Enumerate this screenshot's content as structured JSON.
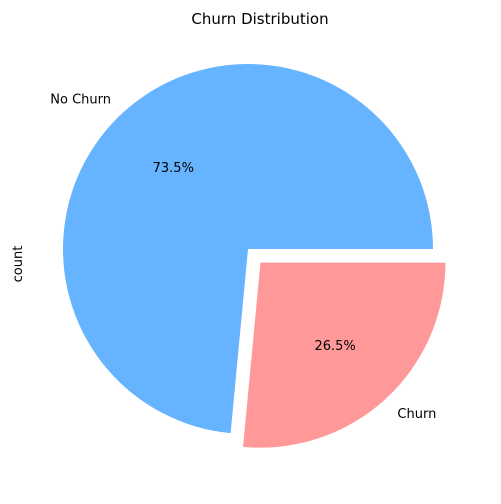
{
  "chart_data": {
    "type": "pie",
    "title": "Churn Distribution",
    "ylabel": "count",
    "categories": [
      "No Churn",
      "Churn"
    ],
    "values": [
      73.5,
      26.5
    ],
    "percent_labels": [
      "73.5%",
      "26.5%"
    ],
    "colors": [
      "#66b3ff",
      "#ff9999"
    ],
    "exploded": [
      false,
      true
    ]
  }
}
